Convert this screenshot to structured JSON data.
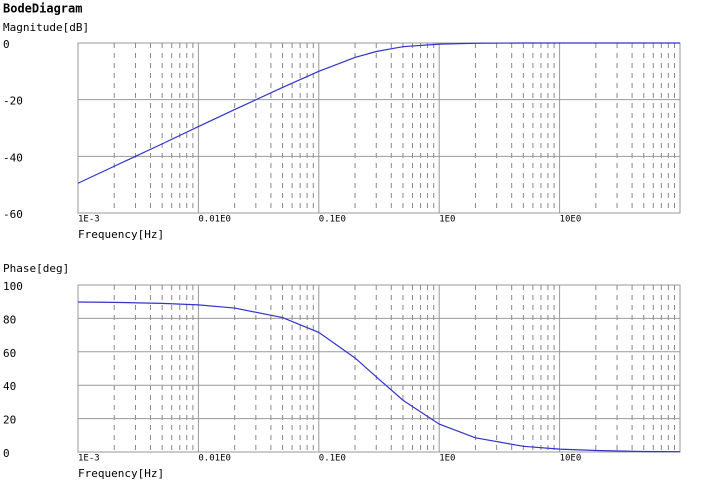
{
  "title": "BodeDiagram",
  "chart_data": [
    {
      "type": "line",
      "ylabel": "Magnitude[dB]",
      "xlabel": "Frequency[Hz]",
      "xlog": true,
      "grid": true,
      "x": [
        0.001,
        0.002,
        0.005,
        0.01,
        0.02,
        0.05,
        0.1,
        0.2,
        0.3,
        0.5,
        1,
        2,
        5,
        10,
        20,
        50,
        100
      ],
      "series": [
        {
          "color": "#3333cc",
          "values": [
            -49.5,
            -43.5,
            -35.6,
            -29.5,
            -23.5,
            -15.7,
            -10.0,
            -5.1,
            -3.0,
            -1.3,
            -0.4,
            -0.1,
            0,
            0,
            0,
            0,
            0
          ]
        }
      ],
      "xlim": [
        0.001,
        100
      ],
      "ylim": [
        -60,
        0
      ],
      "xticks": [
        {
          "value": 0.001,
          "label": "1E-3"
        },
        {
          "value": 0.01,
          "label": "0.01E0"
        },
        {
          "value": 0.1,
          "label": "0.1E0"
        },
        {
          "value": 1,
          "label": "1E0"
        },
        {
          "value": 10,
          "label": "10E0"
        }
      ],
      "yticks": [
        0,
        -20,
        -40,
        -60
      ]
    },
    {
      "type": "line",
      "ylabel": "Phase[deg]",
      "xlabel": "Frequency[Hz]",
      "xlog": true,
      "grid": true,
      "x": [
        0.001,
        0.002,
        0.005,
        0.01,
        0.02,
        0.05,
        0.1,
        0.2,
        0.3,
        0.5,
        1,
        2,
        5,
        10,
        20,
        50,
        100
      ],
      "series": [
        {
          "color": "#3333cc",
          "values": [
            89.8,
            89.6,
            89.0,
            88.1,
            86.2,
            80.5,
            71.6,
            56.3,
            45.0,
            31.0,
            16.7,
            8.5,
            3.4,
            1.7,
            0.9,
            0.3,
            0.2
          ]
        }
      ],
      "xlim": [
        0.001,
        100
      ],
      "ylim": [
        0,
        100
      ],
      "xticks": [
        {
          "value": 0.001,
          "label": "1E-3"
        },
        {
          "value": 0.01,
          "label": "0.01E0"
        },
        {
          "value": 0.1,
          "label": "0.1E0"
        },
        {
          "value": 1,
          "label": "1E0"
        },
        {
          "value": 10,
          "label": "10E0"
        }
      ],
      "yticks": [
        0,
        20,
        40,
        60,
        80,
        100
      ]
    }
  ]
}
